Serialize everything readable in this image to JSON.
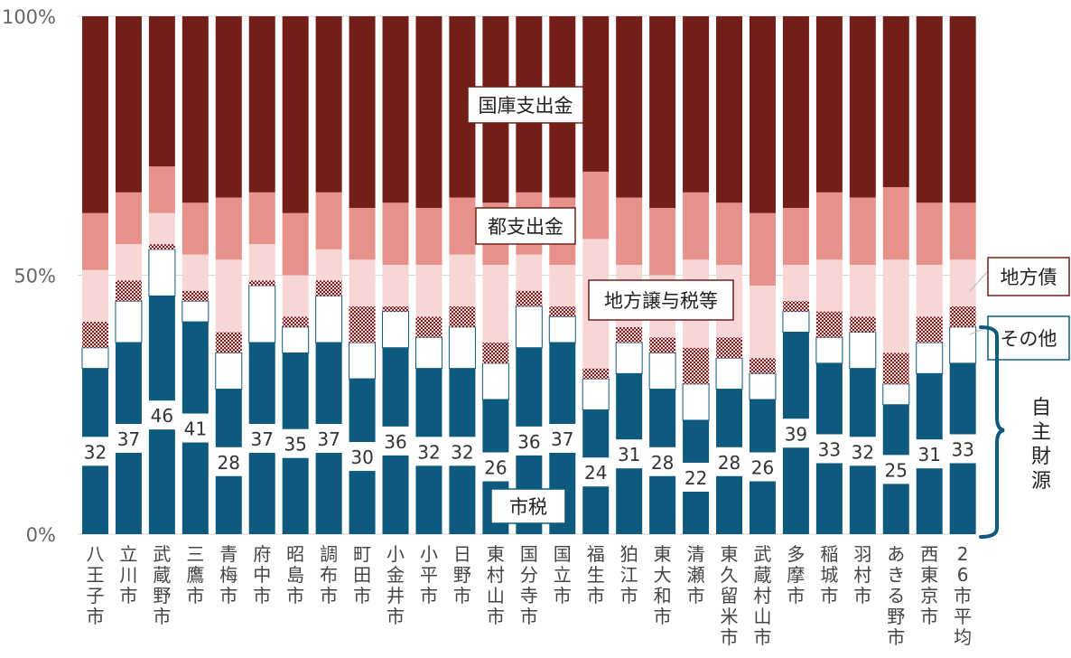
{
  "chart_data": {
    "type": "bar",
    "stacked": true,
    "percent": true,
    "ylim": [
      0,
      100
    ],
    "yticks": [
      "0%",
      "50%",
      "100%"
    ],
    "grid": true,
    "categories": [
      "八王子市",
      "立川市",
      "武蔵野市",
      "三鷹市",
      "青梅市",
      "府中市",
      "昭島市",
      "調布市",
      "町田市",
      "小金井市",
      "小平市",
      "日野市",
      "東村山市",
      "国分寺市",
      "国立市",
      "福生市",
      "狛江市",
      "東大和市",
      "清瀬市",
      "東久留米市",
      "武蔵村山市",
      "多摩市",
      "稲城市",
      "羽村市",
      "あきる野市",
      "西東京市",
      "26市平均"
    ],
    "series": [
      {
        "name": "市税",
        "color": "#0e5a7e",
        "values": [
          32,
          37,
          46,
          41,
          28,
          37,
          35,
          37,
          30,
          36,
          32,
          32,
          26,
          36,
          37,
          24,
          31,
          28,
          22,
          28,
          26,
          39,
          33,
          32,
          25,
          31,
          33
        ]
      },
      {
        "name": "その他",
        "color": "#ffffff",
        "values": [
          4,
          8,
          9,
          4,
          7,
          11,
          5,
          9,
          7,
          7,
          6,
          8,
          7,
          8,
          5,
          6,
          6,
          7,
          7,
          6,
          5,
          4,
          5,
          7,
          4,
          6,
          7
        ]
      },
      {
        "name": "地方債",
        "color": "#a33a3a",
        "values": [
          5,
          4,
          1,
          2,
          4,
          1,
          2,
          3,
          7,
          1,
          4,
          4,
          4,
          3,
          2,
          2,
          3,
          3,
          7,
          4,
          3,
          2,
          5,
          3,
          6,
          5,
          4
        ]
      },
      {
        "name": "地方譲与税等",
        "color": "#f7d6d6",
        "values": [
          10,
          7,
          6,
          7,
          14,
          7,
          8,
          6,
          9,
          8,
          10,
          10,
          15,
          7,
          8,
          25,
          12,
          12,
          17,
          14,
          14,
          7,
          10,
          10,
          18,
          10,
          9
        ]
      },
      {
        "name": "都支出金",
        "color": "#e69189",
        "values": [
          11,
          10,
          9,
          10,
          12,
          10,
          12,
          11,
          10,
          12,
          11,
          11,
          12,
          12,
          13,
          13,
          13,
          13,
          13,
          12,
          14,
          11,
          13,
          13,
          14,
          12,
          11
        ]
      },
      {
        "name": "国庫支出金",
        "color": "#731e18",
        "values": [
          38,
          34,
          29,
          36,
          35,
          34,
          38,
          34,
          37,
          36,
          37,
          35,
          36,
          34,
          35,
          30,
          35,
          37,
          34,
          36,
          38,
          37,
          34,
          35,
          33,
          36,
          36
        ]
      }
    ],
    "data_labels_series": "市税",
    "annotations": {
      "kokko": "国庫支出金",
      "toshishutsu": "都支出金",
      "joyozei": "地方譲与税等",
      "shizei": "市税",
      "chihosai": "地方債",
      "sonota": "その他",
      "jishu": "自主財源"
    }
  }
}
